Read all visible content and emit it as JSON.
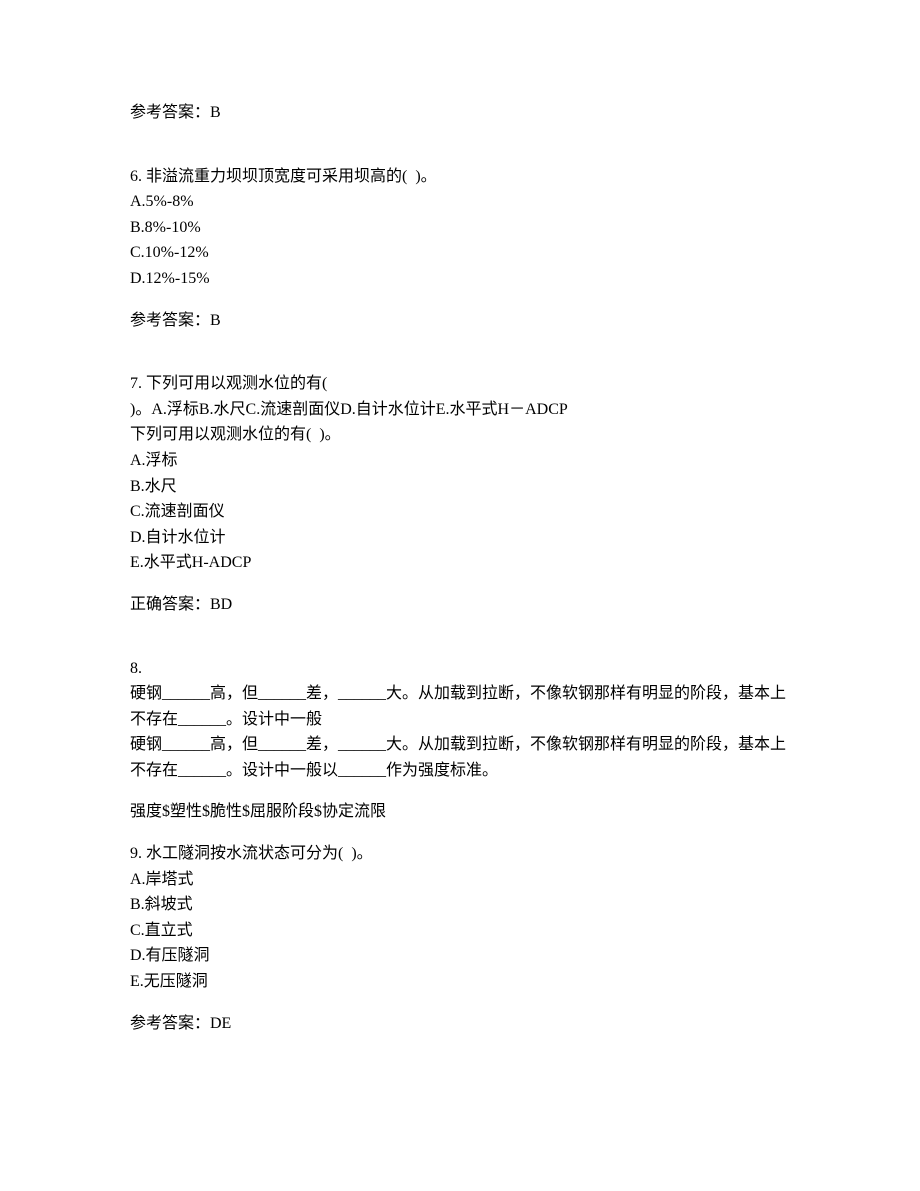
{
  "q5_answer": "参考答案：B",
  "q6": {
    "stem": "6. 非溢流重力坝坝顶宽度可采用坝高的(  )。",
    "a": "A.5%-8%",
    "b": "B.8%-10%",
    "c": "C.10%-12%",
    "d": "D.12%-15%",
    "answer": "参考答案：B"
  },
  "q7": {
    "stem1": "7. 下列可用以观测水位的有(",
    "stem2": ")。A.浮标B.水尺C.流速剖面仪D.自计水位计E.水平式H－ADCP",
    "stem3": "下列可用以观测水位的有(  )。",
    "a": "A.浮标",
    "b": "B.水尺",
    "c": "C.流速剖面仪",
    "d": "D.自计水位计",
    "e": "E.水平式H-ADCP",
    "answer": "正确答案：BD"
  },
  "q8": {
    "num": "8.",
    "line1": "硬钢______高，但______差，______大。从加载到拉断，不像软钢那样有明显的阶段，基本上不存在______。设计中一般",
    "line2": "硬钢______高，但______差，______大。从加载到拉断，不像软钢那样有明显的阶段，基本上不存在______。设计中一般以______作为强度标准。",
    "answer": "强度$塑性$脆性$屈服阶段$协定流限"
  },
  "q9": {
    "stem": "9. 水工隧洞按水流状态可分为(  )。",
    "a": "A.岸塔式",
    "b": "B.斜坡式",
    "c": "C.直立式",
    "d": "D.有压隧洞",
    "e": "E.无压隧洞",
    "answer": "参考答案：DE"
  }
}
